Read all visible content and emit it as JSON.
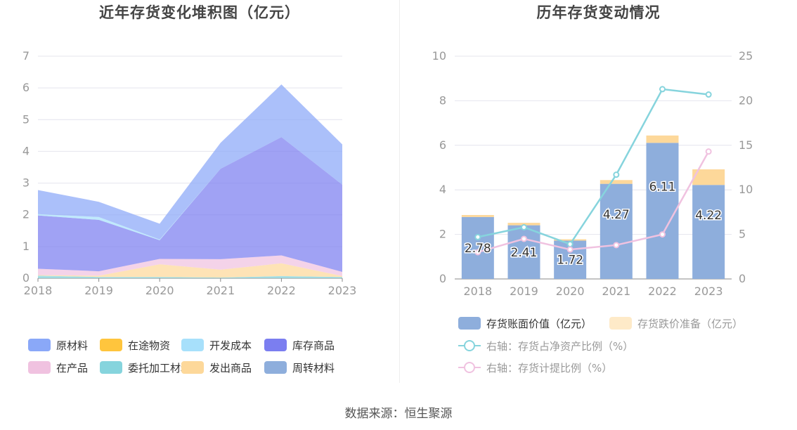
{
  "left": {
    "title": "近年存货变化堆积图（亿元）",
    "chart_data": {
      "type": "area",
      "stacked": true,
      "x": [
        "2018",
        "2019",
        "2020",
        "2021",
        "2022",
        "2023"
      ],
      "ylim": [
        0,
        7
      ],
      "yticks": [
        0,
        1,
        2,
        3,
        4,
        5,
        6,
        7
      ],
      "grid": true,
      "legend_position": "bottom",
      "series": [
        {
          "name": "委托加工材料",
          "color": "#86d4dd",
          "values": [
            0.08,
            0.04,
            0.04,
            0.02,
            0.07,
            0.04
          ]
        },
        {
          "name": "周转材料",
          "color": "#8eaedc",
          "values": [
            0.0,
            0.0,
            0.0,
            0.0,
            0.0,
            0.0
          ]
        },
        {
          "name": "在途物资",
          "color": "#ffc53d",
          "values": [
            0.0,
            0.0,
            0.0,
            0.0,
            0.0,
            0.0
          ]
        },
        {
          "name": "发出商品",
          "color": "#fdd89a",
          "values": [
            0.02,
            0.04,
            0.4,
            0.25,
            0.4,
            0.03
          ]
        },
        {
          "name": "在产品",
          "color": "#f0c2e0",
          "values": [
            0.2,
            0.14,
            0.17,
            0.33,
            0.25,
            0.13
          ]
        },
        {
          "name": "库存商品",
          "color": "#7b7ef0",
          "values": [
            1.68,
            1.62,
            0.59,
            2.85,
            3.73,
            2.75
          ]
        },
        {
          "name": "开发成本",
          "color": "#a7e0fb",
          "values": [
            0.04,
            0.09,
            0.02,
            0.0,
            0.0,
            0.0
          ]
        },
        {
          "name": "原材料",
          "color": "#8aa8f8",
          "values": [
            0.76,
            0.48,
            0.5,
            0.82,
            1.66,
            1.27
          ]
        }
      ]
    },
    "legend": [
      {
        "name": "原材料",
        "color": "#8aa8f8"
      },
      {
        "name": "在途物资",
        "color": "#ffc53d"
      },
      {
        "name": "开发成本",
        "color": "#a7e0fb"
      },
      {
        "name": "库存商品",
        "color": "#7b7ef0"
      },
      {
        "name": "在产品",
        "color": "#f0c2e0"
      },
      {
        "name": "委托加工材料",
        "color": "#86d4dd"
      },
      {
        "name": "发出商品",
        "color": "#fdd89a"
      },
      {
        "name": "周转材料",
        "color": "#8eaedc"
      }
    ]
  },
  "right": {
    "title": "历年存货变动情况",
    "chart_data": {
      "type": "bar",
      "categories": [
        "2018",
        "2019",
        "2020",
        "2021",
        "2022",
        "2023"
      ],
      "ylim": [
        0,
        10
      ],
      "yticks": [
        0,
        2,
        4,
        6,
        8,
        10
      ],
      "y2lim": [
        0,
        25
      ],
      "y2ticks": [
        0,
        5,
        10,
        15,
        20,
        25
      ],
      "grid": true,
      "legend_position": "bottom",
      "bar_series": [
        {
          "name": "存货账面价值（亿元）",
          "color": "#8eaedc",
          "values": [
            2.78,
            2.41,
            1.72,
            4.27,
            6.11,
            4.22
          ],
          "labels": [
            "2.78",
            "2.41",
            "1.72",
            "4.27",
            "6.11",
            "4.22"
          ]
        },
        {
          "name": "存货跌价准备（亿元）",
          "color": "#fdd89a",
          "values": [
            0.09,
            0.11,
            0.06,
            0.17,
            0.33,
            0.7
          ]
        }
      ],
      "line_series": [
        {
          "name": "右轴：存货占净资产比例（%）",
          "color": "#86d4dd",
          "values": [
            4.7,
            5.8,
            3.9,
            11.7,
            21.3,
            20.7
          ]
        },
        {
          "name": "右轴：存货计提比例（%）",
          "color": "#f0c2e0",
          "values": [
            3.0,
            4.5,
            3.3,
            3.8,
            5.0,
            14.3
          ]
        }
      ]
    }
  },
  "source": "数据来源：恒生聚源"
}
